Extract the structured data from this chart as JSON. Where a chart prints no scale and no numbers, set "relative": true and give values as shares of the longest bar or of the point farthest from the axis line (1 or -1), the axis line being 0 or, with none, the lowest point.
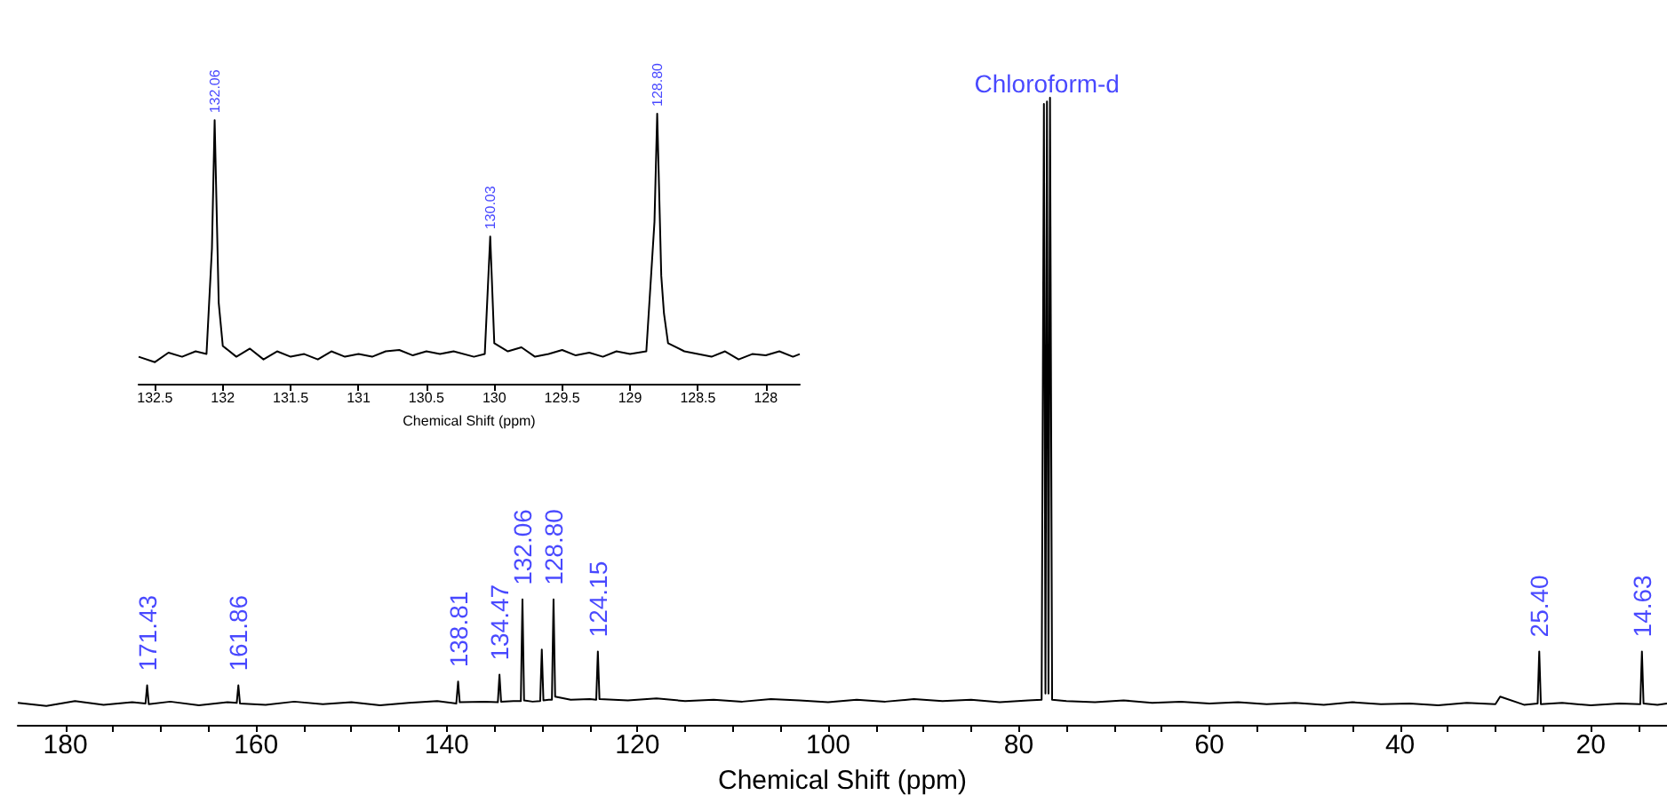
{
  "chart_data": [
    {
      "type": "line",
      "relative": true,
      "xlabel": "Chemical Shift (ppm)",
      "xlim": [
        185,
        12
      ],
      "xticks": [
        180,
        {
          "value": 175,
          "label": null
        },
        160,
        {
          "value": 170,
          "label": null
        },
        {
          "value": 165,
          "label": null
        },
        {
          "value": 155,
          "label": null
        },
        140,
        {
          "value": 150,
          "label": null
        },
        {
          "value": 145,
          "label": null
        },
        {
          "value": 135,
          "label": null
        },
        120,
        {
          "value": 130,
          "label": null
        },
        {
          "value": 125,
          "label": null
        },
        {
          "value": 115,
          "label": null
        },
        100,
        {
          "value": 110,
          "label": null
        },
        {
          "value": 105,
          "label": null
        },
        {
          "value": 95,
          "label": null
        },
        80,
        {
          "value": 90,
          "label": null
        },
        {
          "value": 85,
          "label": null
        },
        {
          "value": 75,
          "label": null
        },
        60,
        {
          "value": 70,
          "label": null
        },
        {
          "value": 65,
          "label": null
        },
        {
          "value": 55,
          "label": null
        },
        40,
        {
          "value": 50,
          "label": null
        },
        {
          "value": 45,
          "label": null
        },
        {
          "value": 35,
          "label": null
        },
        20,
        {
          "value": 30,
          "label": null
        },
        {
          "value": 25,
          "label": null
        },
        {
          "value": 15,
          "label": null
        }
      ],
      "series": [
        {
          "color": "#000000",
          "x": [
            185,
            182,
            179,
            176,
            173,
            171.6,
            171.43,
            171.26,
            169,
            166,
            163,
            162.03,
            161.86,
            161.69,
            159,
            156,
            153,
            150,
            147,
            144,
            141,
            139,
            138.98,
            138.81,
            138.64,
            136,
            134.64,
            134.47,
            134.3,
            133,
            132.23,
            132.06,
            131.89,
            131,
            130.2,
            130.03,
            129.86,
            129.3,
            128.97,
            128.8,
            128.63,
            127,
            125,
            124.32,
            124.15,
            123.98,
            121,
            118,
            115,
            112,
            109,
            106,
            103,
            100,
            97,
            94,
            91,
            88,
            85,
            82,
            79,
            77.6,
            77.36,
            77.2,
            77.04,
            76.88,
            76.72,
            76.5,
            75,
            72,
            69,
            66,
            63,
            60,
            57,
            54,
            51,
            48,
            45,
            42,
            39,
            36,
            33,
            30,
            29.5,
            27,
            25.57,
            25.4,
            25.23,
            23,
            20,
            17,
            14.8,
            14.63,
            14.46,
            13,
            12
          ],
          "values": [
            0.035,
            0.03,
            0.038,
            0.032,
            0.036,
            0.034,
            0.063,
            0.033,
            0.037,
            0.031,
            0.036,
            0.035,
            0.063,
            0.034,
            0.032,
            0.037,
            0.033,
            0.036,
            0.031,
            0.035,
            0.038,
            0.034,
            0.035,
            0.069,
            0.036,
            0.037,
            0.036,
            0.08,
            0.037,
            0.038,
            0.038,
            0.2,
            0.039,
            0.037,
            0.038,
            0.12,
            0.039,
            0.04,
            0.04,
            0.2,
            0.045,
            0.04,
            0.041,
            0.04,
            0.117,
            0.041,
            0.039,
            0.042,
            0.038,
            0.04,
            0.037,
            0.041,
            0.039,
            0.036,
            0.04,
            0.037,
            0.041,
            0.038,
            0.04,
            0.036,
            0.039,
            0.04,
            0.99,
            0.05,
            0.994,
            0.05,
            1.0,
            0.04,
            0.038,
            0.036,
            0.039,
            0.035,
            0.037,
            0.034,
            0.036,
            0.033,
            0.035,
            0.032,
            0.036,
            0.033,
            0.034,
            0.031,
            0.035,
            0.033,
            0.045,
            0.032,
            0.034,
            0.117,
            0.033,
            0.035,
            0.031,
            0.034,
            0.033,
            0.117,
            0.034,
            0.032,
            0.034
          ]
        }
      ],
      "annotations": [
        {
          "text": "171.43",
          "x": 171.43,
          "y": 0.063
        },
        {
          "text": "161.86",
          "x": 161.86,
          "y": 0.063
        },
        {
          "text": "138.81",
          "x": 138.81,
          "y": 0.069
        },
        {
          "text": "134.47",
          "x": 134.47,
          "y": 0.08
        },
        {
          "text": "132.06",
          "x": 132.06,
          "y": 0.2
        },
        {
          "text": "128.80",
          "x": 128.8,
          "y": 0.2
        },
        {
          "text": "124.15",
          "x": 124.15,
          "y": 0.117
        },
        {
          "text": "Chloroform-d",
          "x": 77.04,
          "y": 1.0
        },
        {
          "text": "25.40",
          "x": 25.4,
          "y": 0.117
        },
        {
          "text": "14.63",
          "x": 14.63,
          "y": 0.117
        }
      ]
    },
    {
      "type": "line",
      "relative": true,
      "xlabel": "Chemical Shift (ppm)",
      "xlim": [
        132.62,
        127.75
      ],
      "xticks": [
        132.5,
        132.0,
        131.5,
        131.0,
        130.5,
        130.0,
        129.5,
        129.0,
        128.5,
        128.0
      ],
      "series": [
        {
          "color": "#000000",
          "x": [
            132.62,
            132.5,
            132.4,
            132.3,
            132.2,
            132.12,
            132.08,
            132.06,
            132.03,
            132.0,
            131.9,
            131.8,
            131.7,
            131.6,
            131.5,
            131.4,
            131.3,
            131.2,
            131.1,
            131.0,
            130.9,
            130.8,
            130.7,
            130.6,
            130.5,
            130.4,
            130.3,
            130.15,
            130.07,
            130.03,
            130.0,
            129.9,
            129.8,
            129.7,
            129.6,
            129.5,
            129.4,
            129.3,
            129.2,
            129.1,
            129.0,
            128.88,
            128.82,
            128.8,
            128.77,
            128.75,
            128.72,
            128.6,
            128.5,
            128.4,
            128.3,
            128.2,
            128.1,
            128.0,
            127.9,
            127.8,
            127.75
          ],
          "values": [
            0.1,
            0.08,
            0.115,
            0.1,
            0.12,
            0.11,
            0.5,
            0.976,
            0.3,
            0.14,
            0.1,
            0.13,
            0.09,
            0.12,
            0.1,
            0.11,
            0.09,
            0.12,
            0.1,
            0.11,
            0.1,
            0.12,
            0.125,
            0.105,
            0.12,
            0.11,
            0.12,
            0.1,
            0.11,
            0.545,
            0.15,
            0.12,
            0.135,
            0.1,
            0.11,
            0.125,
            0.105,
            0.115,
            0.1,
            0.12,
            0.11,
            0.12,
            0.6,
            1.0,
            0.4,
            0.26,
            0.15,
            0.12,
            0.11,
            0.1,
            0.12,
            0.09,
            0.11,
            0.105,
            0.12,
            0.1,
            0.11
          ]
        }
      ],
      "annotations": [
        {
          "text": "132.06",
          "x": 132.06,
          "y": 0.976
        },
        {
          "text": "130.03",
          "x": 130.03,
          "y": 0.545
        },
        {
          "text": "128.80",
          "x": 128.8,
          "y": 1.0
        }
      ]
    }
  ]
}
